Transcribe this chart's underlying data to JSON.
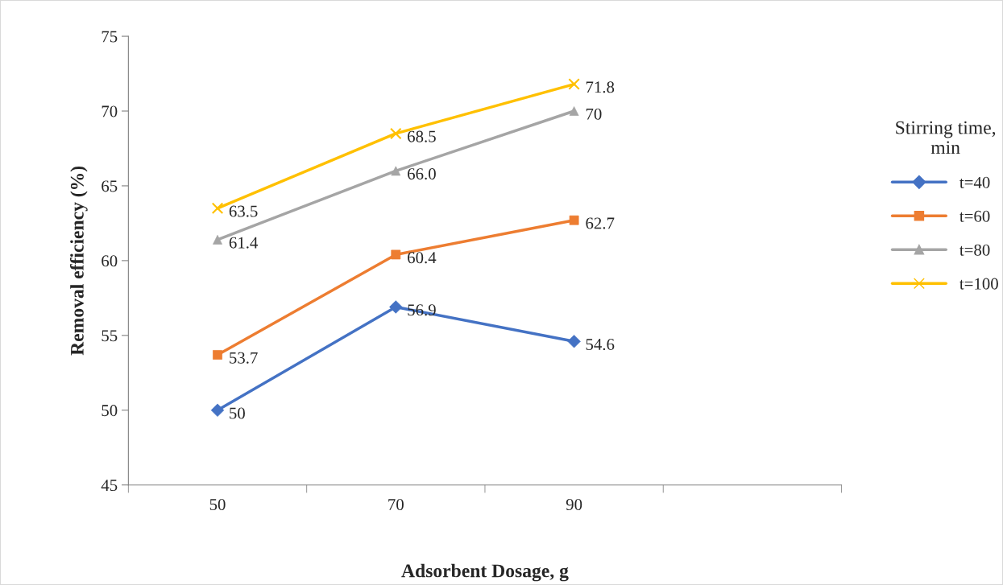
{
  "chart_data": {
    "type": "line",
    "xlabel": "Adsorbent Dosage, g",
    "ylabel": "Removal efficiency (%)",
    "legend_title": "Stirring time,\nmin",
    "categories": [
      "50",
      "70",
      "90",
      null
    ],
    "ylim": [
      45,
      75
    ],
    "yticks": [
      45,
      50,
      55,
      60,
      65,
      70,
      75
    ],
    "grid": false,
    "legend": "right",
    "series": [
      {
        "name": "t=40",
        "color": "#4472c4",
        "marker": "diamond",
        "values": [
          50,
          56.9,
          54.6,
          null
        ],
        "value_labels": [
          "50",
          "56.9",
          "54.6",
          null
        ]
      },
      {
        "name": "t=60",
        "color": "#ed7d31",
        "marker": "square",
        "values": [
          53.7,
          60.4,
          62.7,
          null
        ],
        "value_labels": [
          "53.7",
          "60.4",
          "62.7",
          null
        ]
      },
      {
        "name": "t=80",
        "color": "#a5a5a5",
        "marker": "triangle",
        "values": [
          61.4,
          66.0,
          70,
          null
        ],
        "value_labels": [
          "61.4",
          "66.0",
          "70",
          null
        ]
      },
      {
        "name": "t=100",
        "color": "#ffc000",
        "marker": "cross",
        "values": [
          63.5,
          68.5,
          71.8,
          null
        ],
        "value_labels": [
          "63.5",
          "68.5",
          "71.8",
          null
        ]
      }
    ]
  }
}
